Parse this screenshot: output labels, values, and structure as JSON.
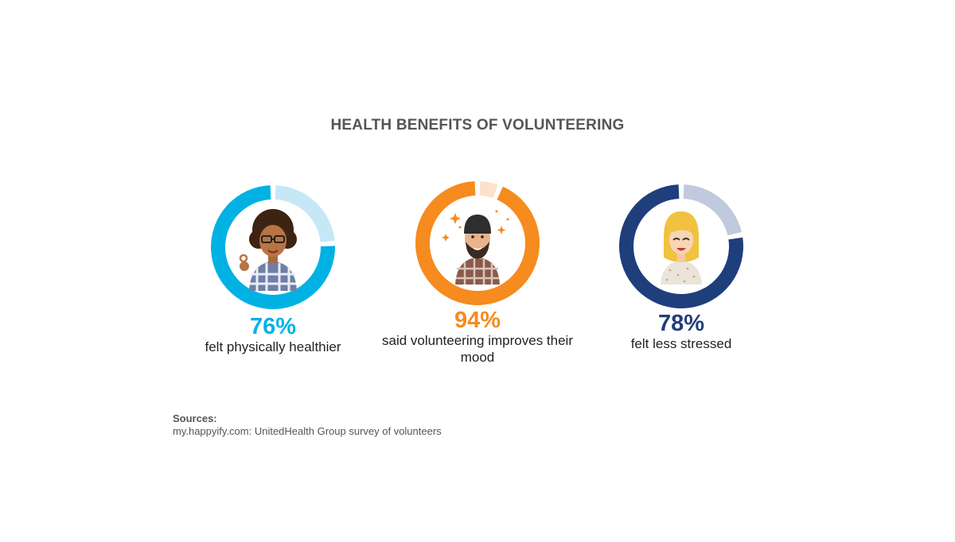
{
  "title": "HEALTH BENEFITS OF VOLUNTEERING",
  "chart_data": [
    {
      "type": "pie",
      "value": 76,
      "label": "76%",
      "caption": "felt physically healthier",
      "color": "#00b2e3",
      "track_color": "#c6e8f6",
      "icon": "woman-with-glasses-icon"
    },
    {
      "type": "pie",
      "value": 94,
      "label": "94%",
      "caption": "said volunteering improves their mood",
      "color": "#f68b1f",
      "track_color": "#fde1cc",
      "icon": "bearded-man-icon"
    },
    {
      "type": "pie",
      "value": 78,
      "label": "78%",
      "caption": "felt less stressed",
      "color": "#1f3e7c",
      "track_color": "#c0c9dd",
      "icon": "blonde-woman-icon"
    }
  ],
  "sources": {
    "heading": "Sources:",
    "text": "my.happyify.com: UnitedHealth Group survey of volunteers"
  }
}
